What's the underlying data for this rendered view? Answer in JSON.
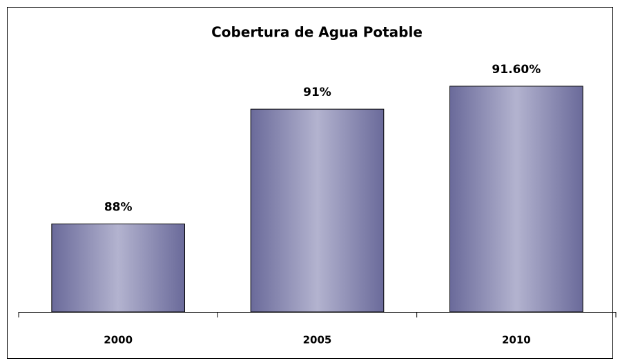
{
  "chart_data": {
    "type": "bar",
    "title": "Cobertura de Agua Potable",
    "categories": [
      "2000",
      "2005",
      "2010"
    ],
    "values": [
      88,
      91,
      91.6
    ],
    "value_labels": [
      "88%",
      "91%",
      "91.60%"
    ],
    "color": "#6a6a9a",
    "ylim": [
      85.7,
      92.5
    ]
  }
}
